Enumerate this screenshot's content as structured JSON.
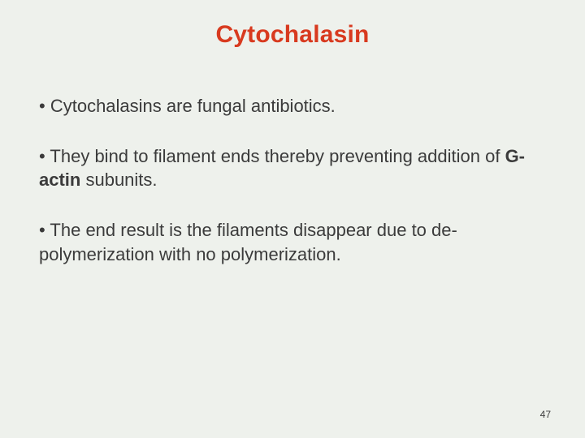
{
  "slide": {
    "title": "Cytochalasin",
    "title_color": "#d83a1f",
    "title_fontsize": 30,
    "title_fontweight": 700,
    "body_color": "#3b3b3b",
    "body_fontsize": 22,
    "background_color": "#eef1ec",
    "bullets": [
      {
        "prefix": "• ",
        "text": "Cytochalasins are fungal antibiotics."
      },
      {
        "prefix": "• ",
        "text_before": "They bind to filament ends thereby preventing addition of ",
        "bold": "G-actin",
        "text_after": " subunits."
      },
      {
        "prefix": "• ",
        "text": "The end result is the filaments disappear due to de-polymerization with no polymerization."
      }
    ],
    "page_number": "47",
    "page_number_fontsize": 12
  }
}
